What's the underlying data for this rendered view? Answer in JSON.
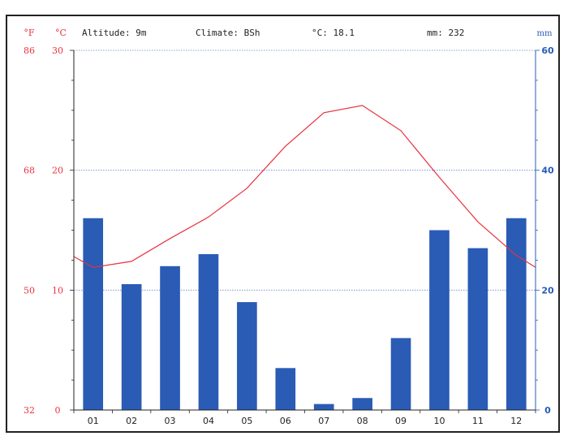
{
  "header": {
    "unit_f": "°F",
    "unit_c": "°C",
    "altitude": "Altitude: 9m",
    "climate": "Climate: BSh",
    "mean_temp": "°C: 18.1",
    "total_precip": "mm: 232",
    "unit_mm": "mm"
  },
  "colors": {
    "temperature": "#e8313f",
    "precipitation": "#2a5bb5",
    "axis_right": "#2a5bb5",
    "gridline": "#6f86c7"
  },
  "chart_data": {
    "type": "bar",
    "title": "",
    "categories": [
      "01",
      "02",
      "03",
      "04",
      "05",
      "06",
      "07",
      "08",
      "09",
      "10",
      "11",
      "12"
    ],
    "series": [
      {
        "type": "bar",
        "axis": "right",
        "values": [
          32,
          21,
          24,
          26,
          18,
          7,
          1,
          2,
          12,
          30,
          27,
          32
        ]
      },
      {
        "type": "line",
        "axis": "left",
        "values": [
          11.9,
          12.4,
          14.3,
          16.1,
          18.5,
          22.0,
          24.8,
          25.4,
          23.3,
          19.4,
          15.7,
          12.9
        ]
      }
    ],
    "y_left": {
      "ticks": [
        0,
        10,
        20,
        30
      ],
      "range": [
        0,
        30
      ]
    },
    "y_fahrenheit": {
      "ticks": [
        32,
        50,
        68,
        86
      ]
    },
    "y_right": {
      "ticks": [
        0,
        20,
        40,
        60
      ],
      "range": [
        0,
        60
      ]
    },
    "grid": true
  }
}
